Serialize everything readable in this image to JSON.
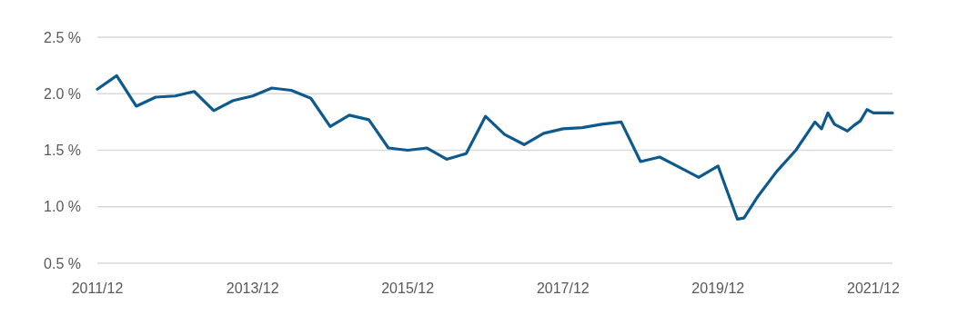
{
  "chart_data": {
    "type": "line",
    "x": [
      "2011-12",
      "2012-03",
      "2012-06",
      "2012-09",
      "2012-12",
      "2013-03",
      "2013-06",
      "2013-09",
      "2013-12",
      "2014-03",
      "2014-06",
      "2014-09",
      "2014-12",
      "2015-03",
      "2015-06",
      "2015-09",
      "2015-12",
      "2016-03",
      "2016-06",
      "2016-09",
      "2016-12",
      "2017-03",
      "2017-06",
      "2017-09",
      "2017-12",
      "2018-03",
      "2018-06",
      "2018-09",
      "2018-12",
      "2019-03",
      "2019-06",
      "2019-09",
      "2019-12",
      "2020-03",
      "2020-04",
      "2020-06",
      "2020-09",
      "2020-12",
      "2021-03",
      "2021-04",
      "2021-05",
      "2021-06",
      "2021-08",
      "2021-09",
      "2021-10",
      "2021-11",
      "2021-12",
      "2022-03"
    ],
    "series": [
      {
        "color": "#0f5a8c",
        "values": [
          2.04,
          2.16,
          1.89,
          1.97,
          1.98,
          2.02,
          1.85,
          1.94,
          1.98,
          2.05,
          2.03,
          1.96,
          1.71,
          1.81,
          1.77,
          1.52,
          1.5,
          1.52,
          1.42,
          1.47,
          1.8,
          1.64,
          1.55,
          1.65,
          1.69,
          1.7,
          1.73,
          1.75,
          1.4,
          1.44,
          1.35,
          1.26,
          1.36,
          0.89,
          0.9,
          1.08,
          1.31,
          1.5,
          1.75,
          1.69,
          1.83,
          1.73,
          1.67,
          1.72,
          1.76,
          1.86,
          1.83,
          1.83
        ]
      }
    ],
    "xlim": [
      "2011-12",
      "2022-03"
    ],
    "xticks": [
      {
        "value": "2011-12",
        "label": "2011/12"
      },
      {
        "value": "2013-12",
        "label": "2013/12"
      },
      {
        "value": "2015-12",
        "label": "2015/12"
      },
      {
        "value": "2017-12",
        "label": "2017/12"
      },
      {
        "value": "2019-12",
        "label": "2019/12"
      },
      {
        "value": "2021-12",
        "label": "2021/12"
      }
    ],
    "ylim": [
      0.5,
      2.5
    ],
    "yticks": [
      {
        "value": 0.5,
        "label": "0.5 %"
      },
      {
        "value": 1.0,
        "label": "1.0 %"
      },
      {
        "value": 1.5,
        "label": "1.5 %"
      },
      {
        "value": 2.0,
        "label": "2.0 %"
      },
      {
        "value": 2.5,
        "label": "2.5 %"
      }
    ],
    "grid": "y",
    "marker": "none",
    "line_style": "solid"
  }
}
